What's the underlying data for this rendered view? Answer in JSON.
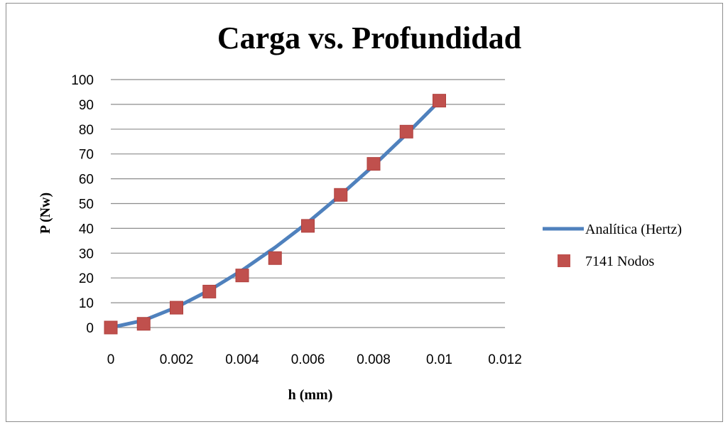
{
  "chart_data": {
    "type": "scatter",
    "title": "Carga vs. Profundidad",
    "xlabel": "h (mm)",
    "ylabel": "P (Nw)",
    "xlim": [
      0,
      0.012
    ],
    "ylim": [
      0,
      100
    ],
    "x_ticks": [
      "0",
      "0.002",
      "0.004",
      "0.006",
      "0.008",
      "0.01",
      "0.012"
    ],
    "y_ticks": [
      "0",
      "10",
      "20",
      "30",
      "40",
      "50",
      "60",
      "70",
      "80",
      "90",
      "100"
    ],
    "grid": "horizontal",
    "legend_position": "right",
    "series": [
      {
        "name": "Analítica (Hertz)",
        "style": "line",
        "color": "#4F81BD",
        "x": [
          0,
          0.001,
          0.002,
          0.003,
          0.004,
          0.005,
          0.006,
          0.007,
          0.008,
          0.009,
          0.01
        ],
        "y": [
          0,
          2.9,
          8.2,
          15.0,
          23.1,
          32.3,
          42.4,
          53.5,
          65.3,
          78.0,
          91.3
        ]
      },
      {
        "name": "7141 Nodos",
        "style": "marker",
        "color": "#C0504D",
        "x": [
          0,
          0.001,
          0.002,
          0.003,
          0.004,
          0.005,
          0.006,
          0.007,
          0.008,
          0.009,
          0.01
        ],
        "y": [
          0,
          1.5,
          8,
          14.5,
          21,
          28,
          41,
          53.5,
          66,
          79,
          91.5
        ]
      }
    ]
  }
}
